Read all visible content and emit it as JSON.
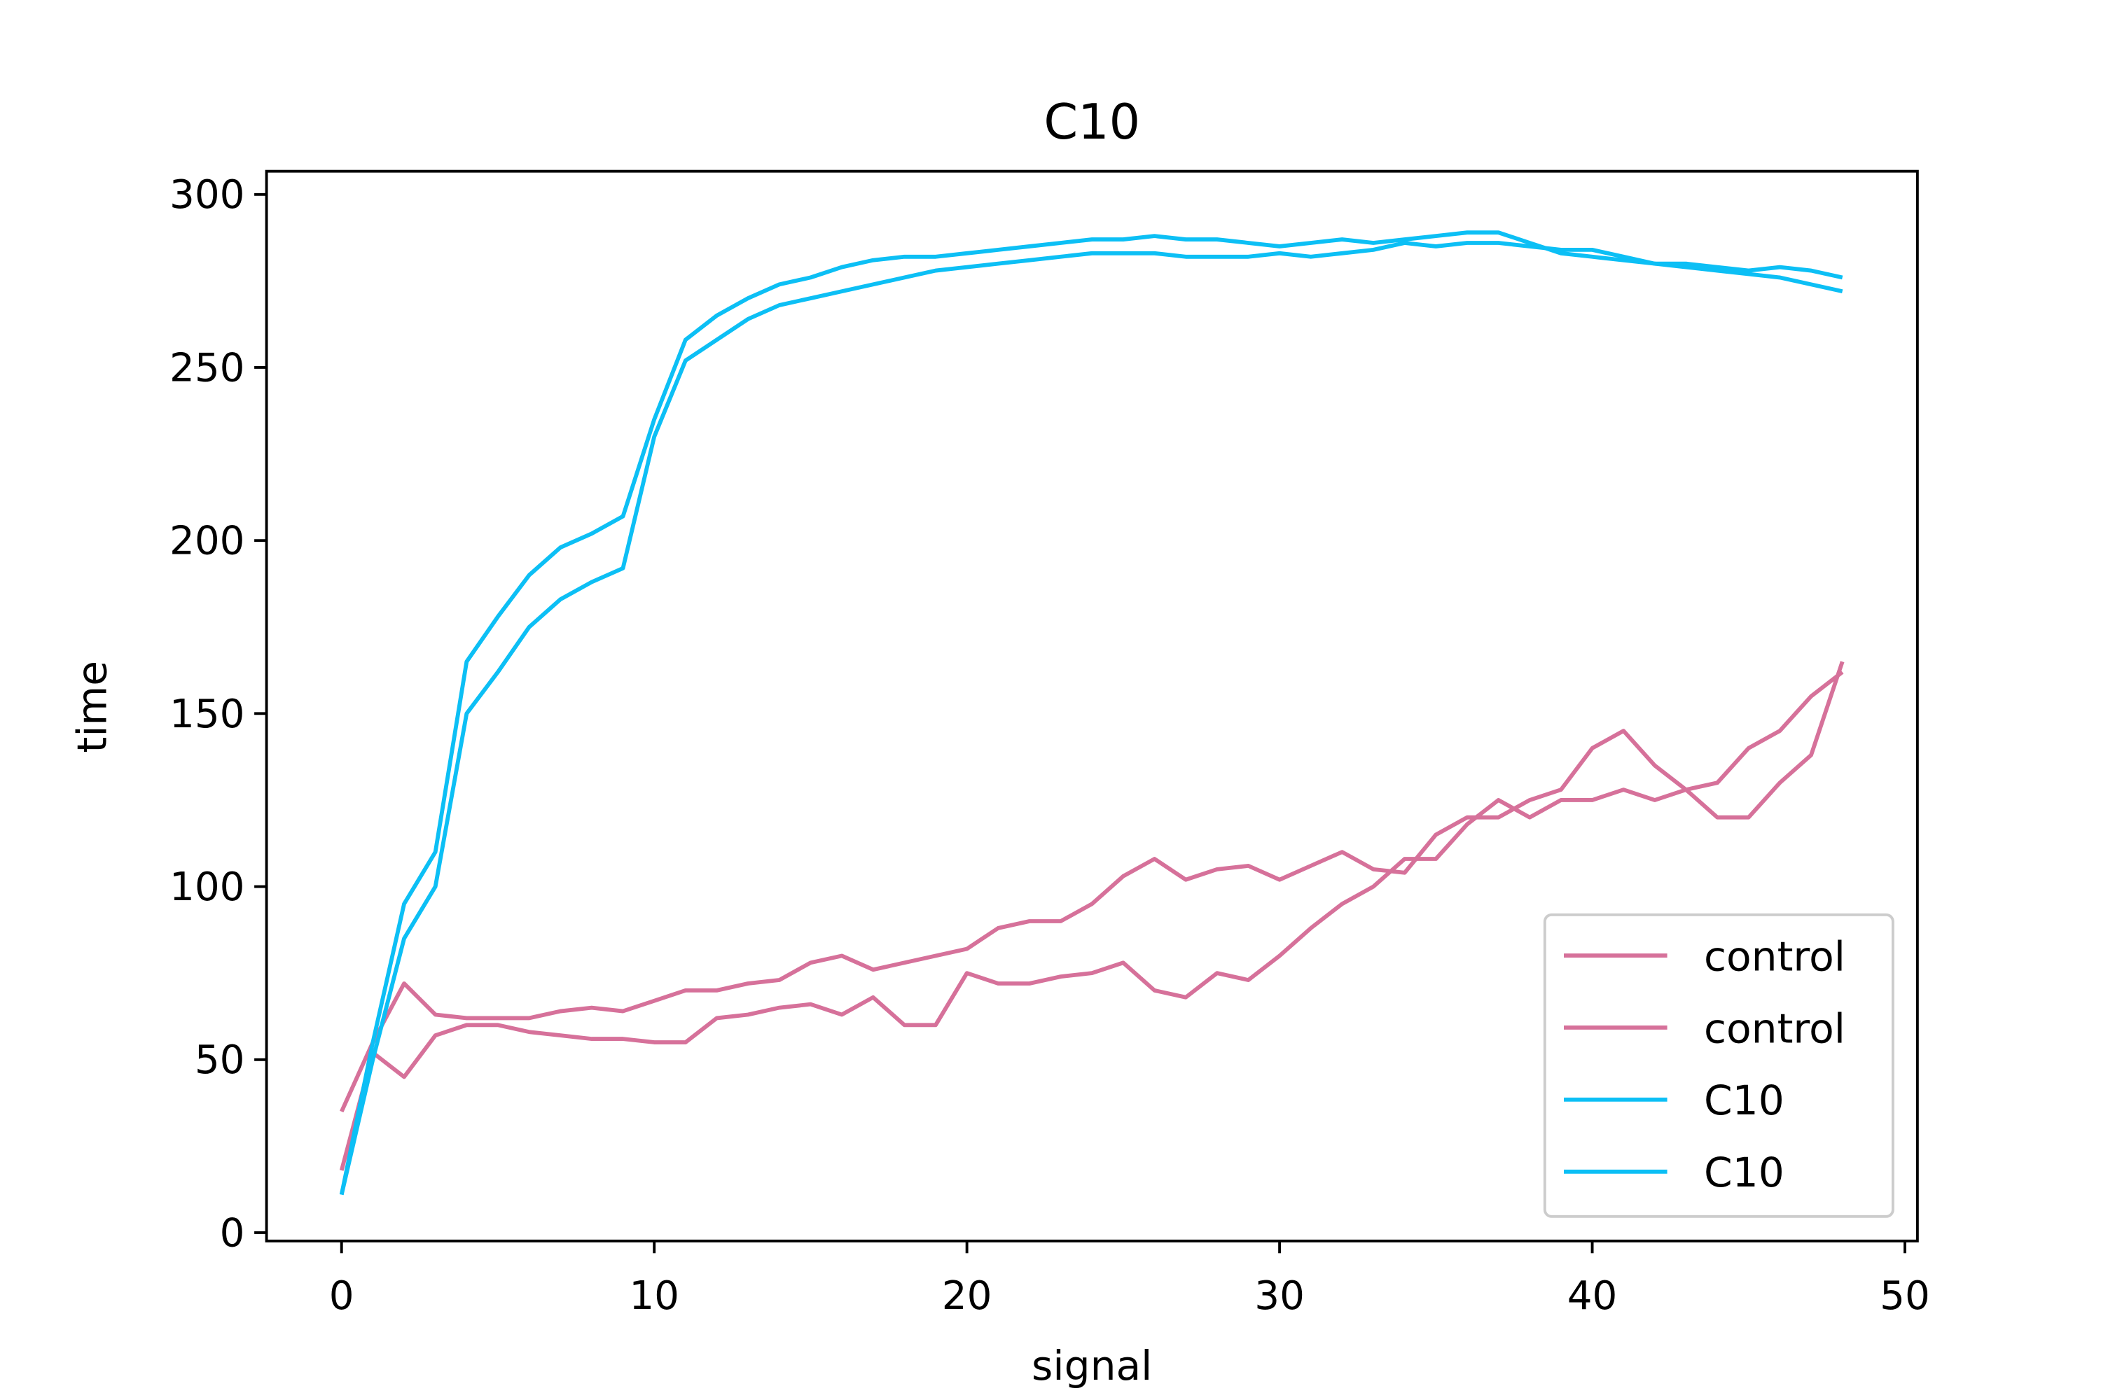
{
  "chart_data": {
    "type": "line",
    "title": "C10",
    "x_label": "signal",
    "y_label": "time",
    "x": [
      0,
      1,
      2,
      3,
      4,
      5,
      6,
      7,
      8,
      9,
      10,
      11,
      12,
      13,
      14,
      15,
      16,
      17,
      18,
      19,
      20,
      21,
      22,
      23,
      24,
      25,
      26,
      27,
      28,
      29,
      30,
      31,
      32,
      33,
      34,
      35,
      36,
      37,
      38,
      39,
      40,
      41,
      42,
      43,
      44,
      45,
      46,
      47,
      48
    ],
    "series": [
      {
        "name": "control",
        "color": "#d6719a",
        "values": [
          35,
          55,
          72,
          63,
          62,
          62,
          62,
          64,
          65,
          64,
          67,
          70,
          70,
          72,
          73,
          78,
          80,
          76,
          78,
          80,
          82,
          88,
          90,
          90,
          95,
          103,
          108,
          102,
          105,
          106,
          102,
          106,
          110,
          105,
          104,
          115,
          120,
          120,
          125,
          128,
          140,
          145,
          135,
          128,
          130,
          140,
          145,
          155,
          162
        ]
      },
      {
        "name": "control",
        "color": "#d6719a",
        "values": [
          18,
          52,
          45,
          57,
          60,
          60,
          58,
          57,
          56,
          56,
          55,
          55,
          62,
          63,
          65,
          66,
          63,
          68,
          60,
          60,
          75,
          72,
          72,
          74,
          75,
          78,
          70,
          68,
          75,
          73,
          80,
          88,
          95,
          100,
          108,
          108,
          118,
          125,
          120,
          125,
          125,
          128,
          125,
          128,
          120,
          120,
          130,
          138,
          165
        ]
      },
      {
        "name": "C10",
        "color": "#0cbff5",
        "values": [
          11,
          55,
          95,
          110,
          165,
          178,
          190,
          198,
          202,
          207,
          235,
          258,
          265,
          270,
          274,
          276,
          279,
          281,
          282,
          282,
          283,
          284,
          285,
          286,
          287,
          287,
          288,
          287,
          287,
          286,
          285,
          286,
          287,
          286,
          287,
          288,
          289,
          289,
          286,
          283,
          282,
          281,
          280,
          279,
          278,
          277,
          276,
          274,
          272
        ]
      },
      {
        "name": "C10",
        "color": "#0cbff5",
        "values": [
          11,
          50,
          85,
          100,
          150,
          162,
          175,
          183,
          188,
          192,
          230,
          252,
          258,
          264,
          268,
          270,
          272,
          274,
          276,
          278,
          279,
          280,
          281,
          282,
          283,
          283,
          283,
          282,
          282,
          282,
          283,
          282,
          283,
          284,
          286,
          285,
          286,
          286,
          285,
          284,
          284,
          282,
          280,
          280,
          279,
          278,
          279,
          278,
          276
        ]
      }
    ],
    "xlim": [
      -2.4,
      50.4
    ],
    "xticks": [
      0,
      10,
      20,
      30,
      40,
      50
    ],
    "ylim": [
      -2.4,
      306.7
    ],
    "yticks": [
      0,
      50,
      100,
      150,
      200,
      250,
      300
    ],
    "legend": "lower right",
    "grid": false
  }
}
